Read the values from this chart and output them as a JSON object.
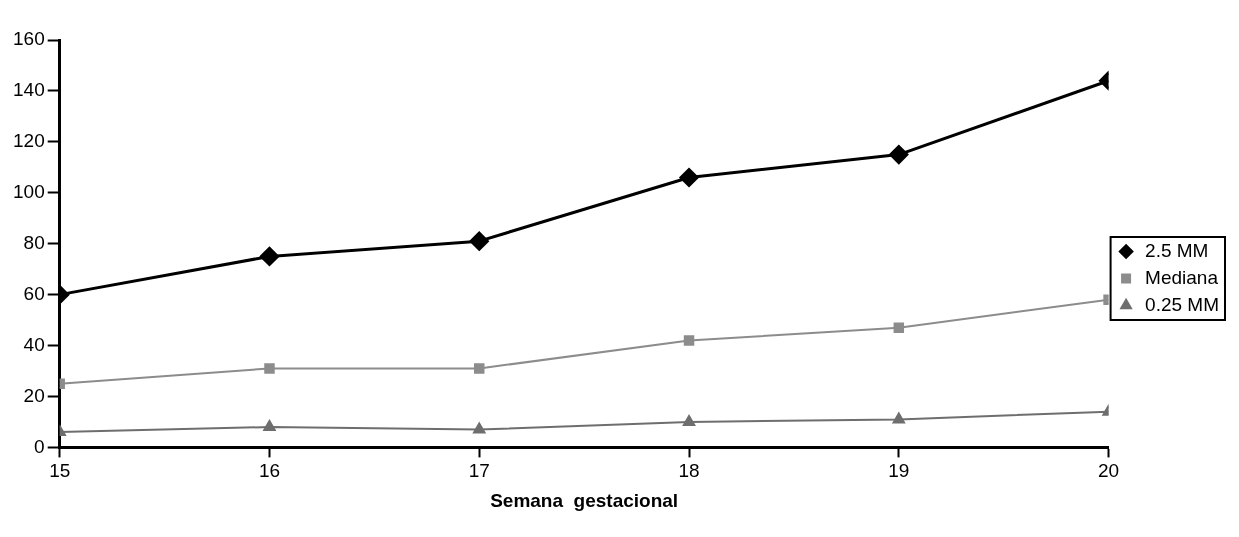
{
  "chart_data": {
    "type": "line",
    "xlabel": "Semana  gestacional",
    "x": [
      15,
      16,
      17,
      18,
      19,
      20
    ],
    "xlim": [
      15,
      20
    ],
    "xticks": [
      15,
      16,
      17,
      18,
      19,
      20
    ],
    "ylim": [
      0,
      160
    ],
    "yticks": [
      0,
      20,
      40,
      60,
      80,
      100,
      120,
      140,
      160
    ],
    "grid": false,
    "legend": "right",
    "series": [
      {
        "name": "2.5 MM",
        "color": "#000000",
        "marker": "diamond",
        "values": [
          60,
          75,
          81,
          106,
          115,
          144
        ]
      },
      {
        "name": "Mediana",
        "color": "#8c8c8c",
        "marker": "square",
        "values": [
          25,
          31,
          31,
          42,
          47,
          58
        ]
      },
      {
        "name": "0.25 MM",
        "color": "#6e6e6e",
        "marker": "triangle",
        "values": [
          6,
          8,
          7,
          10,
          11,
          14
        ]
      }
    ]
  }
}
